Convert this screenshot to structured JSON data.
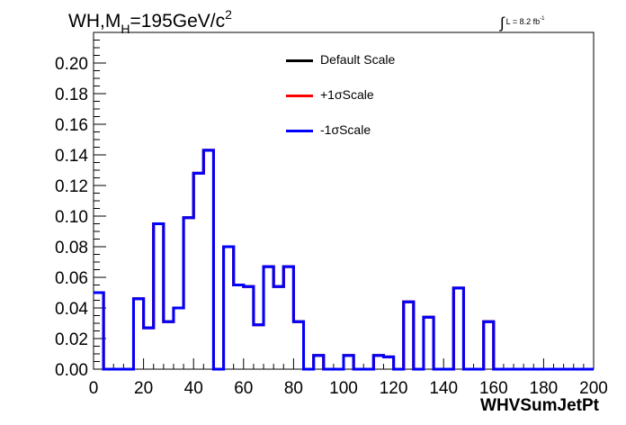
{
  "header": {
    "title_main": "WH,M",
    "title_sub": "H",
    "title_rest": "=195GeV/c",
    "title_sup": "2",
    "lumi_int": "∫",
    "lumi_text": "L = 8.2 fb",
    "lumi_sup": "-1"
  },
  "legend": {
    "entries": [
      {
        "label": "Default Scale",
        "color": "#000000"
      },
      {
        "label": "+1σScale",
        "color": "#ff0000"
      },
      {
        "label": "-1σScale",
        "color": "#0000ff"
      }
    ]
  },
  "chart_data": {
    "type": "line",
    "style": "step-histogram",
    "xlabel": "WHVSumJetPt",
    "ylabel": "",
    "xlim": [
      0,
      200
    ],
    "ylim": [
      0,
      0.22
    ],
    "xticks": [
      0,
      20,
      40,
      60,
      80,
      100,
      120,
      140,
      160,
      180,
      200
    ],
    "yticks": [
      0.0,
      0.02,
      0.04,
      0.06,
      0.08,
      0.1,
      0.12,
      0.14,
      0.16,
      0.18,
      0.2
    ],
    "xtick_labels": [
      "0",
      "20",
      "40",
      "60",
      "80",
      "100",
      "120",
      "140",
      "160",
      "180",
      "200"
    ],
    "ytick_labels": [
      "0.00",
      "0.02",
      "0.04",
      "0.06",
      "0.08",
      "0.10",
      "0.12",
      "0.14",
      "0.16",
      "0.18",
      "0.20"
    ],
    "bin_edges": [
      0,
      4,
      8,
      12,
      16,
      20,
      24,
      28,
      32,
      36,
      40,
      44,
      48,
      52,
      56,
      60,
      64,
      68,
      72,
      76,
      80,
      84,
      88,
      92,
      96,
      100,
      104,
      108,
      112,
      116,
      120,
      124,
      128,
      132,
      136,
      140,
      144,
      148,
      152,
      156,
      160,
      164,
      168,
      172,
      176,
      180,
      184,
      188,
      192,
      196,
      200
    ],
    "series": [
      {
        "name": "Default Scale",
        "color": "#000000",
        "values": [
          0.05,
          0,
          0,
          0,
          0.046,
          0.027,
          0.095,
          0.031,
          0.04,
          0.099,
          0.128,
          0.143,
          0,
          0.08,
          0.055,
          0.054,
          0.029,
          0.067,
          0.054,
          0.067,
          0.031,
          0,
          0.009,
          0,
          0,
          0.009,
          0,
          0,
          0.009,
          0.008,
          0,
          0.044,
          0,
          0.034,
          0,
          0,
          0.053,
          0,
          0,
          0.031,
          0,
          0,
          0,
          0,
          0,
          0,
          0,
          0,
          0,
          0
        ]
      },
      {
        "name": "+1σScale",
        "color": "#ff0000",
        "values": [
          0.05,
          0,
          0,
          0,
          0.046,
          0.027,
          0.095,
          0.031,
          0.04,
          0.099,
          0.128,
          0.143,
          0,
          0.08,
          0.055,
          0.054,
          0.029,
          0.067,
          0.054,
          0.067,
          0.031,
          0,
          0.009,
          0,
          0,
          0.009,
          0,
          0,
          0.009,
          0.008,
          0,
          0.044,
          0,
          0.034,
          0,
          0,
          0.053,
          0,
          0,
          0.031,
          0,
          0,
          0,
          0,
          0,
          0,
          0,
          0,
          0,
          0
        ]
      },
      {
        "name": "-1σScale",
        "color": "#0000ff",
        "values": [
          0.05,
          0,
          0,
          0,
          0.046,
          0.027,
          0.095,
          0.031,
          0.04,
          0.099,
          0.128,
          0.143,
          0,
          0.08,
          0.055,
          0.054,
          0.029,
          0.067,
          0.054,
          0.067,
          0.031,
          0,
          0.009,
          0,
          0,
          0.009,
          0,
          0,
          0.009,
          0.008,
          0,
          0.044,
          0,
          0.034,
          0,
          0,
          0.053,
          0,
          0,
          0.031,
          0,
          0,
          0,
          0,
          0,
          0,
          0,
          0,
          0,
          0
        ]
      }
    ],
    "grid": false,
    "legend_position": "top-center"
  }
}
